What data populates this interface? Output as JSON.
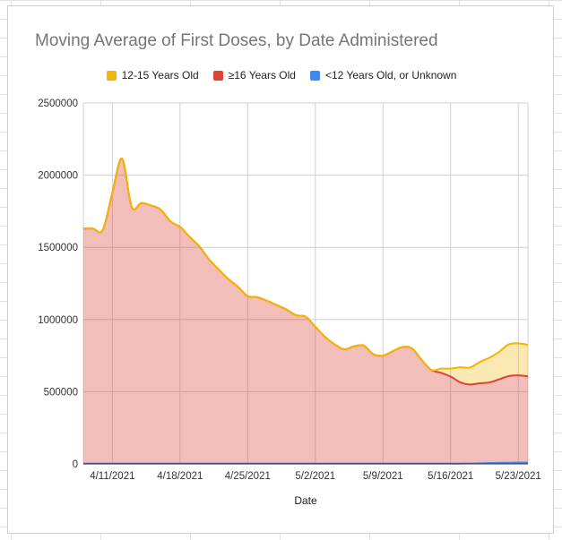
{
  "chart_data": {
    "type": "area",
    "title": "Moving Average of First Doses, by Date Administered",
    "xlabel": "Date",
    "ylabel": "",
    "ylim": [
      0,
      2500000
    ],
    "yticks": [
      0,
      500000,
      1000000,
      1500000,
      2000000,
      2500000
    ],
    "ytick_labels": [
      "0",
      "500000",
      "1000000",
      "1500000",
      "2000000",
      "2500000"
    ],
    "xticks": [
      "4/11/2021",
      "4/18/2021",
      "4/25/2021",
      "5/2/2021",
      "5/9/2021",
      "5/16/2021",
      "5/23/2021"
    ],
    "stacked": true,
    "grid": true,
    "legend_position": "top",
    "x": [
      "4/8/2021",
      "4/9/2021",
      "4/10/2021",
      "4/11/2021",
      "4/12/2021",
      "4/13/2021",
      "4/14/2021",
      "4/15/2021",
      "4/16/2021",
      "4/17/2021",
      "4/18/2021",
      "4/19/2021",
      "4/20/2021",
      "4/21/2021",
      "4/22/2021",
      "4/23/2021",
      "4/24/2021",
      "4/25/2021",
      "4/26/2021",
      "4/27/2021",
      "4/28/2021",
      "4/29/2021",
      "4/30/2021",
      "5/1/2021",
      "5/2/2021",
      "5/3/2021",
      "5/4/2021",
      "5/5/2021",
      "5/6/2021",
      "5/7/2021",
      "5/8/2021",
      "5/9/2021",
      "5/10/2021",
      "5/11/2021",
      "5/12/2021",
      "5/13/2021",
      "5/14/2021",
      "5/15/2021",
      "5/16/2021",
      "5/17/2021",
      "5/18/2021",
      "5/19/2021",
      "5/20/2021",
      "5/21/2021",
      "5/22/2021",
      "5/23/2021",
      "5/24/2021"
    ],
    "series": [
      {
        "name": "<12 Years Old, or Unknown",
        "color": "#4285f4",
        "values": [
          2000,
          2000,
          2000,
          2000,
          2000,
          2000,
          2000,
          2000,
          2000,
          2000,
          2000,
          2000,
          2000,
          2000,
          2000,
          2000,
          2000,
          2000,
          2000,
          2000,
          2000,
          2000,
          2000,
          2000,
          2000,
          2000,
          2000,
          2000,
          2000,
          2000,
          2000,
          2000,
          2000,
          2000,
          2000,
          2000,
          2000,
          2000,
          2000,
          2000,
          3000,
          4000,
          6000,
          7000,
          8000,
          9000,
          9000
        ]
      },
      {
        "name": "≥16 Years Old",
        "color": "#db4437",
        "values": [
          1628000,
          1628000,
          1618000,
          1875000,
          2113000,
          1778000,
          1805000,
          1788000,
          1760000,
          1678000,
          1640000,
          1570000,
          1505000,
          1415000,
          1345000,
          1278000,
          1225000,
          1160000,
          1153000,
          1128000,
          1098000,
          1068000,
          1028000,
          1018000,
          948000,
          878000,
          826000,
          792000,
          812000,
          818000,
          758000,
          748000,
          778000,
          807000,
          798000,
          718000,
          648000,
          629000,
          603000,
          563000,
          547000,
          554000,
          558000,
          578000,
          600000,
          604000,
          597000
        ]
      },
      {
        "name": "12-15 Years Old",
        "color": "#f4b400",
        "values": [
          0,
          0,
          0,
          0,
          0,
          0,
          0,
          0,
          0,
          0,
          0,
          0,
          0,
          0,
          0,
          0,
          0,
          0,
          0,
          0,
          0,
          0,
          0,
          0,
          0,
          0,
          0,
          0,
          0,
          0,
          0,
          0,
          0,
          0,
          0,
          0,
          0,
          29000,
          55000,
          104000,
          118000,
          147000,
          171000,
          190000,
          220000,
          222000,
          219000
        ]
      }
    ]
  }
}
